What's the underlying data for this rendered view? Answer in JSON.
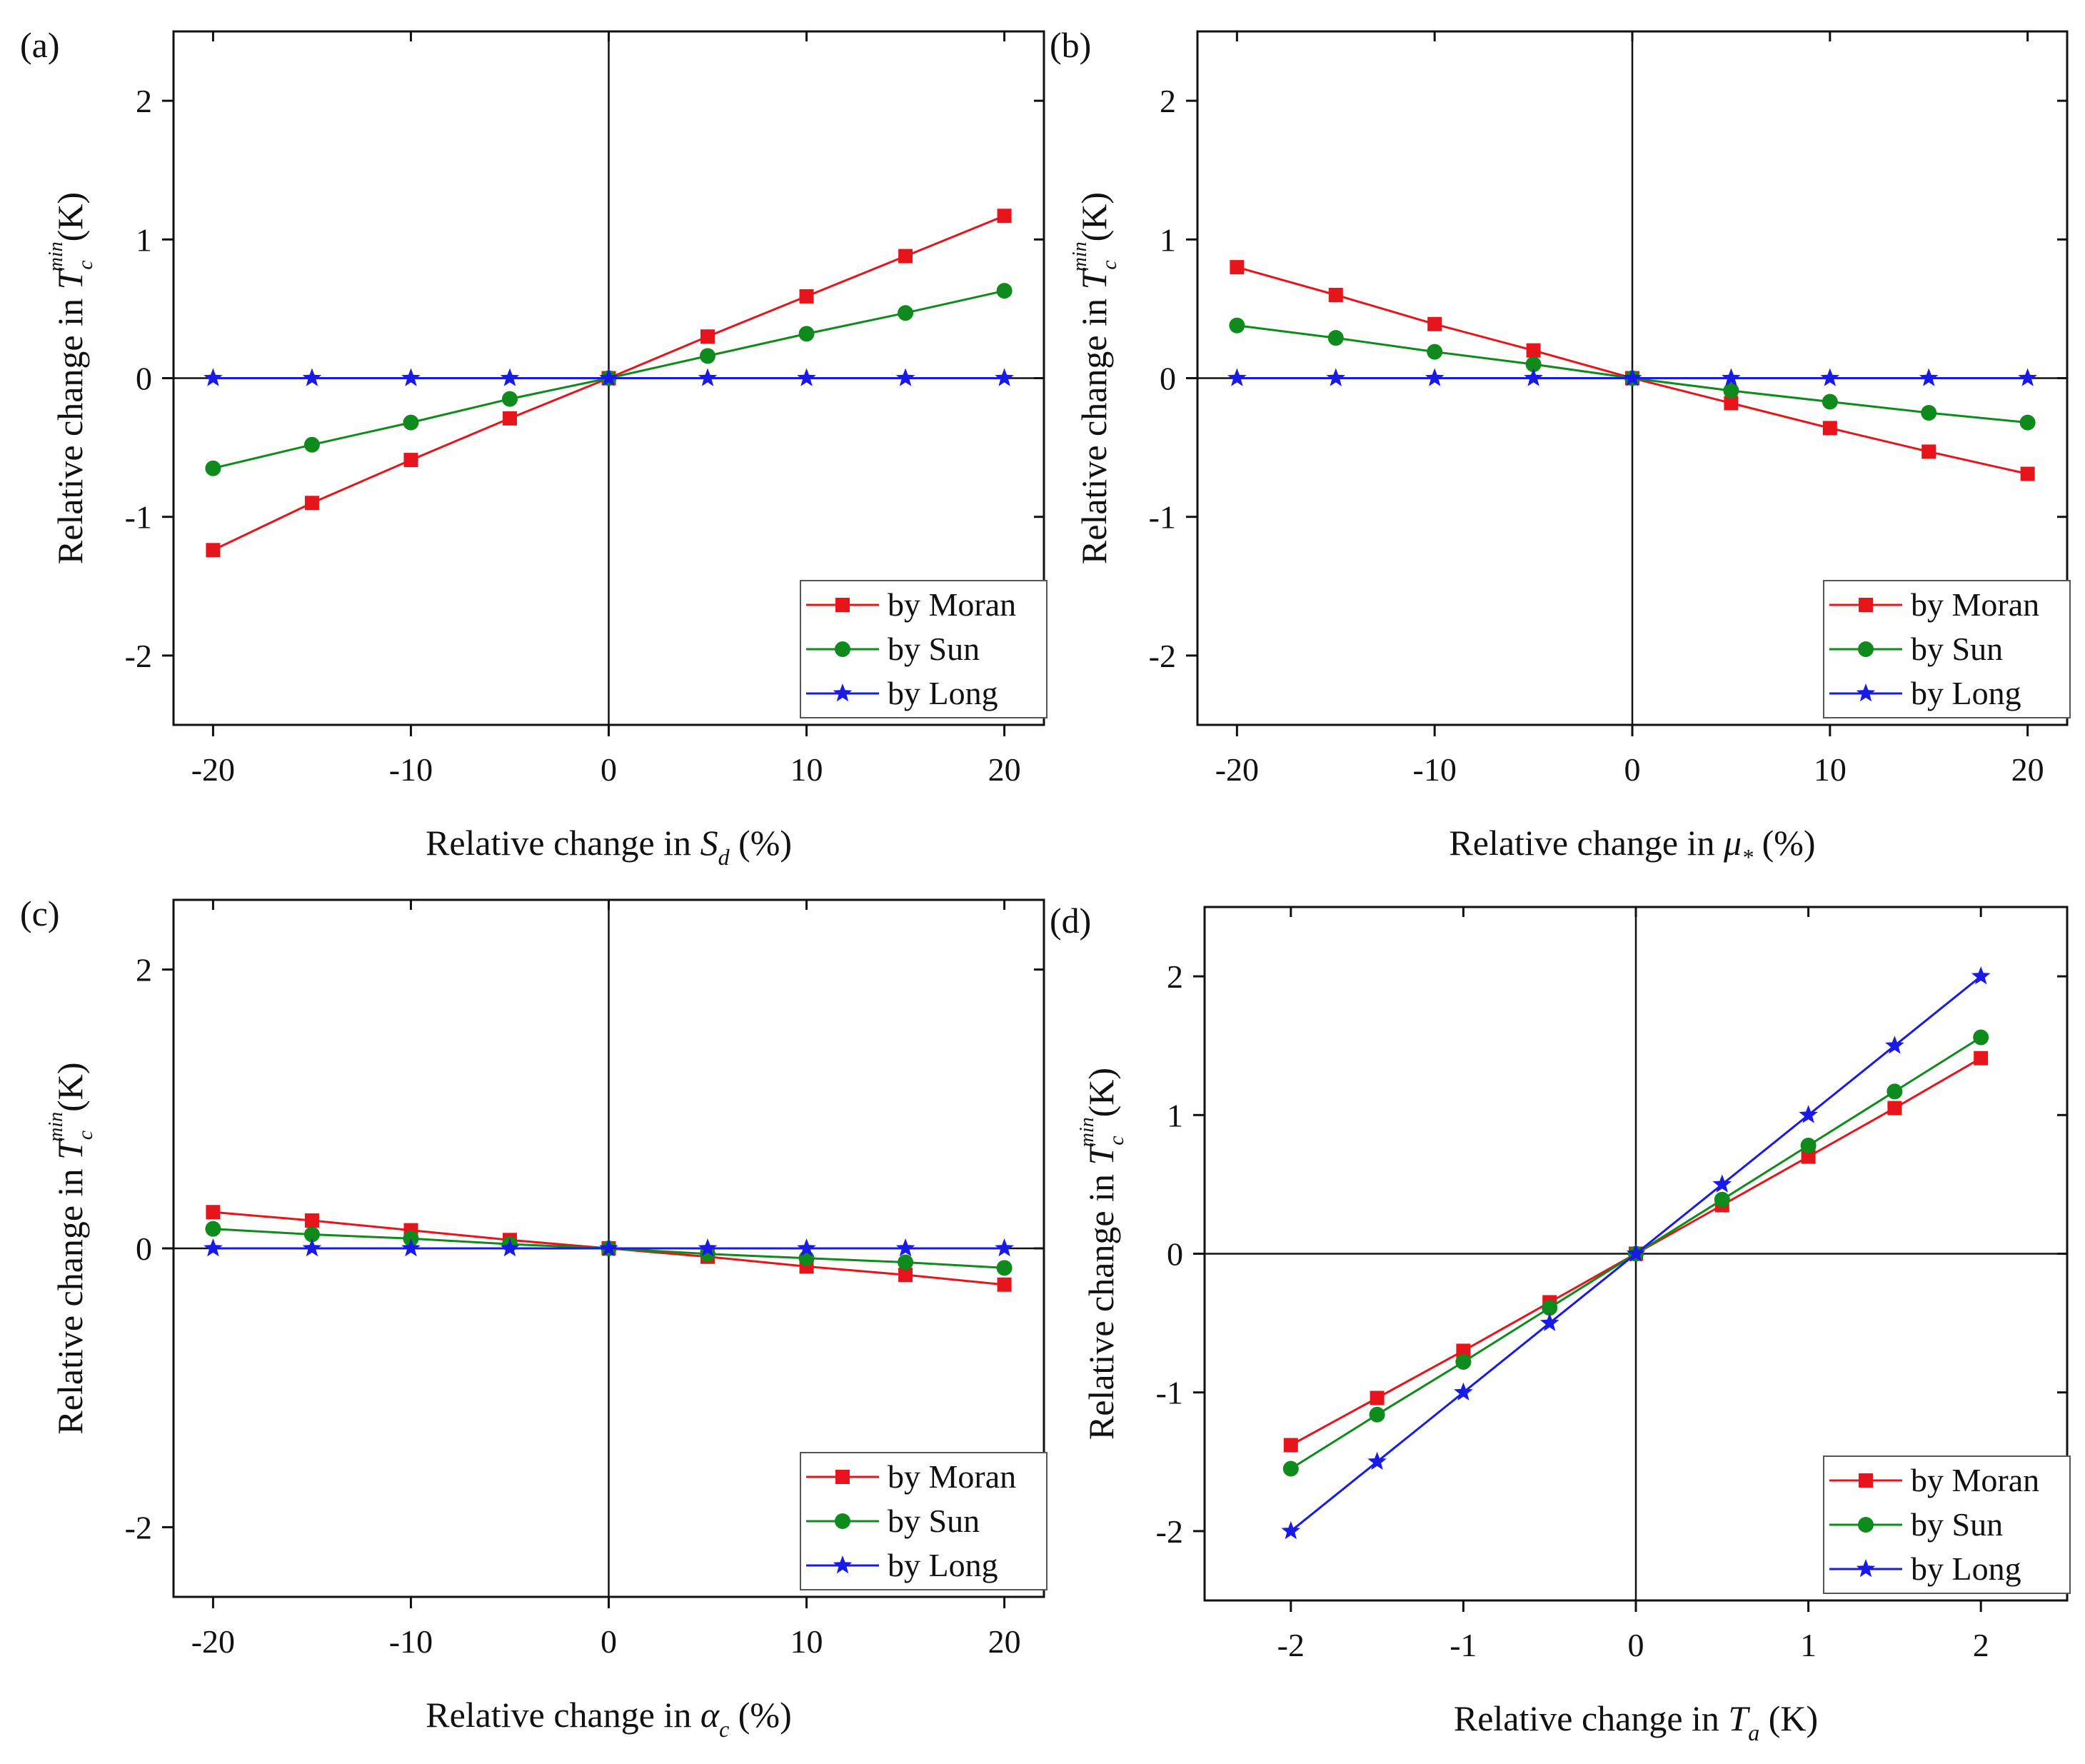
{
  "figure": {
    "colors": {
      "moran": "#e8141c",
      "sun": "#0f8a1c",
      "long": "#1a1ae6",
      "axis": "#111111"
    },
    "legend_labels": [
      "by Moran",
      "by Sun",
      "by Long"
    ]
  },
  "chart_data": [
    {
      "panel": "(a)",
      "type": "line",
      "xlabel": "Relative change in S_d (%)",
      "xlabel_parts": {
        "prefix": "Relative change in ",
        "symbol": "S",
        "subscript": "d",
        "suffix": " (%)"
      },
      "ylabel": "Relative change in T_c^min (K)",
      "ylabel_parts": {
        "prefix": "Relative change in ",
        "symbol": "T",
        "subscript": "c",
        "superscript": "min",
        "suffix": "(K)"
      },
      "xlim": [
        -22,
        22
      ],
      "ylim": [
        -2.5,
        2.5
      ],
      "xticks": [
        -20,
        -10,
        0,
        10,
        20
      ],
      "xtick_labels": [
        "-20",
        "-10",
        "0",
        "10",
        "20"
      ],
      "yticks": [
        -2,
        -1,
        0,
        1,
        2
      ],
      "ytick_labels": [
        "-2",
        "-1",
        "0",
        "1",
        "2"
      ],
      "legend": "bottom-right",
      "x": [
        -20,
        -15,
        -10,
        -5,
        0,
        5,
        10,
        15,
        20
      ],
      "series": [
        {
          "name": "by Moran",
          "marker": "square",
          "values": [
            -1.24,
            -0.9,
            -0.59,
            -0.29,
            0,
            0.3,
            0.59,
            0.88,
            1.17
          ]
        },
        {
          "name": "by Sun",
          "marker": "circle",
          "values": [
            -0.65,
            -0.48,
            -0.32,
            -0.15,
            0,
            0.16,
            0.32,
            0.47,
            0.63
          ]
        },
        {
          "name": "by Long",
          "marker": "star",
          "values": [
            0,
            0,
            0,
            0,
            0,
            0,
            0,
            0,
            0
          ]
        }
      ]
    },
    {
      "panel": "(b)",
      "type": "line",
      "xlabel": "Relative change in μ_* (%)",
      "xlabel_parts": {
        "prefix": "Relative change in ",
        "symbol": "μ",
        "subscript": "*",
        "suffix": " (%)"
      },
      "ylabel": "Relative change in T_c^min (K)",
      "ylabel_parts": {
        "prefix": "Relative change in ",
        "symbol": "T",
        "subscript": "c",
        "superscript": "min",
        "suffix": "(K)"
      },
      "xlim": [
        -22,
        22
      ],
      "ylim": [
        -2.5,
        2.5
      ],
      "xticks": [
        -20,
        -10,
        0,
        10,
        20
      ],
      "xtick_labels": [
        "-20",
        "-10",
        "0",
        "10",
        "20"
      ],
      "yticks": [
        -2,
        -1,
        0,
        1,
        2
      ],
      "ytick_labels": [
        "-2",
        "-1",
        "0",
        "1",
        "2"
      ],
      "legend": "bottom-right",
      "x": [
        -20,
        -15,
        -10,
        -5,
        0,
        5,
        10,
        15,
        20
      ],
      "series": [
        {
          "name": "by Moran",
          "marker": "square",
          "values": [
            0.8,
            0.6,
            0.39,
            0.2,
            0,
            -0.18,
            -0.36,
            -0.53,
            -0.69
          ]
        },
        {
          "name": "by Sun",
          "marker": "circle",
          "values": [
            0.38,
            0.29,
            0.19,
            0.1,
            0,
            -0.09,
            -0.17,
            -0.25,
            -0.32
          ]
        },
        {
          "name": "by Long",
          "marker": "star",
          "values": [
            0,
            0,
            0,
            0,
            0,
            0,
            0,
            0,
            0
          ]
        }
      ]
    },
    {
      "panel": "(c)",
      "type": "line",
      "xlabel": "Relative change in α_c (%)",
      "xlabel_parts": {
        "prefix": "Relative change in ",
        "symbol": "α",
        "subscript": "c",
        "suffix": " (%)"
      },
      "ylabel": "Relative change in T_c^min (K)",
      "ylabel_parts": {
        "prefix": "Relative change in ",
        "symbol": "T",
        "subscript": "c",
        "superscript": "min",
        "suffix": "(K)"
      },
      "xlim": [
        -22,
        22
      ],
      "ylim": [
        -2.5,
        2.5
      ],
      "xticks": [
        -20,
        -10,
        0,
        10,
        20
      ],
      "xtick_labels": [
        "-20",
        "-10",
        "0",
        "10",
        "20"
      ],
      "yticks": [
        -2,
        0,
        2
      ],
      "ytick_labels": [
        "-2",
        "0",
        "2"
      ],
      "legend": "bottom-right",
      "x": [
        -20,
        -15,
        -10,
        -5,
        0,
        5,
        10,
        15,
        20
      ],
      "series": [
        {
          "name": "by Moran",
          "marker": "square",
          "values": [
            0.26,
            0.2,
            0.13,
            0.06,
            0,
            -0.06,
            -0.13,
            -0.19,
            -0.26
          ]
        },
        {
          "name": "by Sun",
          "marker": "circle",
          "values": [
            0.14,
            0.1,
            0.07,
            0.03,
            0,
            -0.04,
            -0.07,
            -0.1,
            -0.14
          ]
        },
        {
          "name": "by Long",
          "marker": "star",
          "values": [
            0,
            0,
            0,
            0,
            0,
            0,
            0,
            0,
            0
          ]
        }
      ]
    },
    {
      "panel": "(d)",
      "type": "line",
      "xlabel": "Relative change in T_a (K)",
      "xlabel_parts": {
        "prefix": "Relative change in ",
        "symbol": "T",
        "subscript": "a",
        "suffix": " (K)"
      },
      "ylabel": "Relative change in T_c^min (K)",
      "ylabel_parts": {
        "prefix": "Relative change in ",
        "symbol": "T",
        "subscript": "c",
        "superscript": "min",
        "suffix": "(K)"
      },
      "xlim": [
        -2.5,
        2.5
      ],
      "ylim": [
        -2.5,
        2.5
      ],
      "xticks": [
        -2,
        -1,
        0,
        1,
        2
      ],
      "xtick_labels": [
        "-2",
        "-1",
        "0",
        "1",
        "2"
      ],
      "yticks": [
        -2,
        -1,
        0,
        1,
        2
      ],
      "ytick_labels": [
        "-2",
        "-1",
        "0",
        "1",
        "2"
      ],
      "legend": "bottom-right",
      "x": [
        -2,
        -1.5,
        -1,
        -0.5,
        0,
        0.5,
        1,
        1.5,
        2
      ],
      "series": [
        {
          "name": "by Moran",
          "marker": "square",
          "values": [
            -1.38,
            -1.04,
            -0.7,
            -0.35,
            0,
            0.35,
            0.7,
            1.05,
            1.41
          ]
        },
        {
          "name": "by Sun",
          "marker": "circle",
          "values": [
            -1.55,
            -1.16,
            -0.78,
            -0.39,
            0,
            0.39,
            0.78,
            1.17,
            1.56
          ]
        },
        {
          "name": "by Long",
          "marker": "star",
          "values": [
            -2,
            -1.5,
            -1,
            -0.5,
            0,
            0.5,
            1,
            1.5,
            2
          ]
        }
      ]
    }
  ]
}
